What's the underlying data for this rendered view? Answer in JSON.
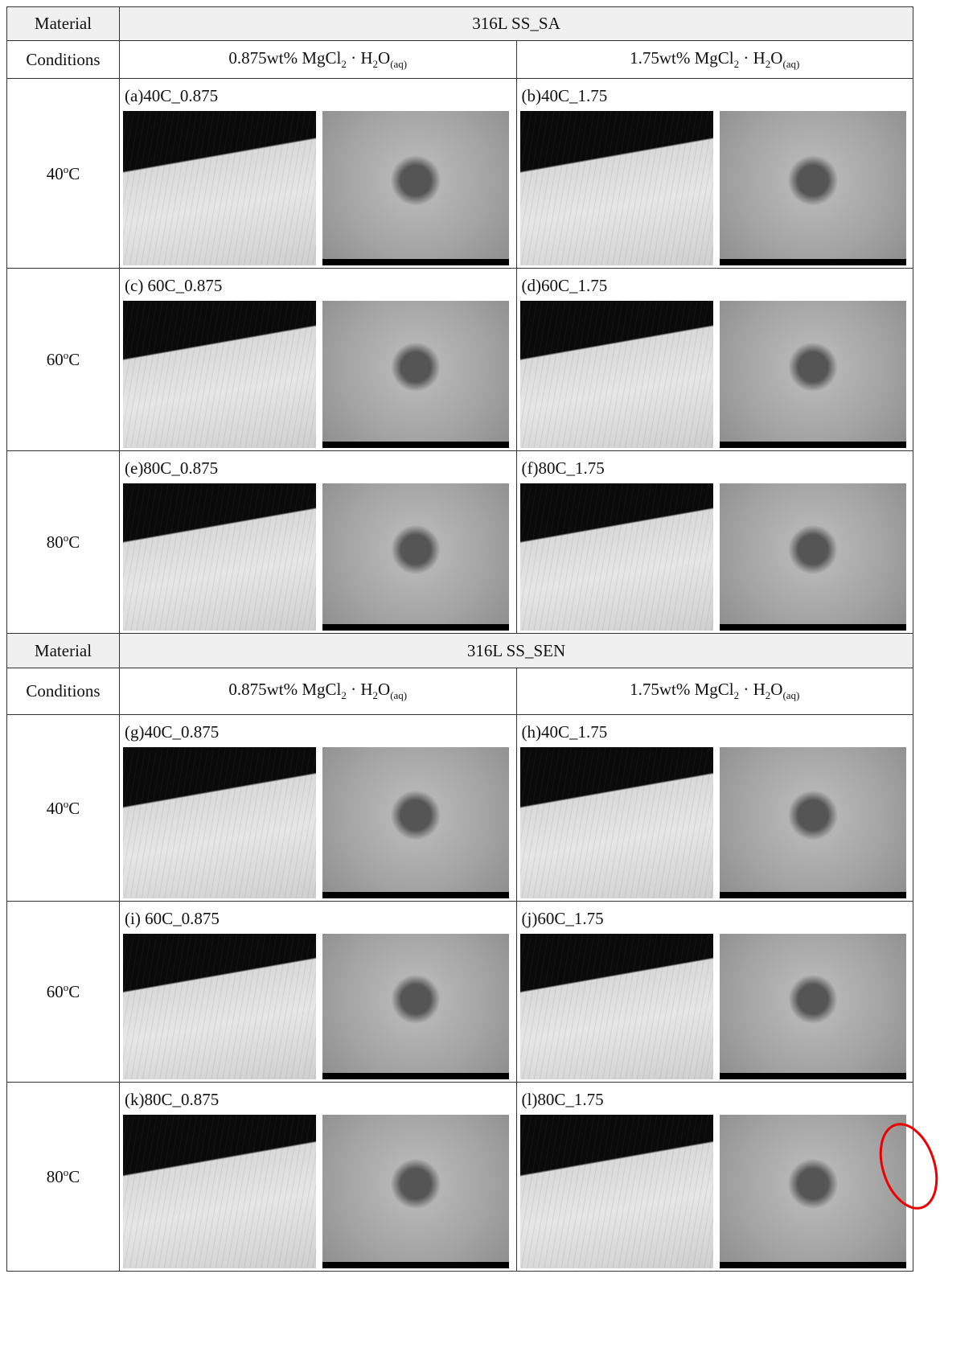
{
  "sections": [
    {
      "material_label": "Material",
      "material": "316L SS_SA",
      "conditions_label": "Conditions",
      "conditions": [
        [
          "0.875wt% MgCl",
          "2",
          " · H",
          "2",
          "O",
          "(aq)"
        ],
        [
          "1.75wt% MgCl",
          "2",
          " · H",
          "2",
          "O",
          "(aq)"
        ]
      ],
      "rows": [
        {
          "temperature": [
            "40",
            "o",
            "C"
          ],
          "cells": [
            "(a)40C_0.875",
            "(b)40C_1.75"
          ]
        },
        {
          "temperature": [
            "60",
            "o",
            "C"
          ],
          "cells": [
            "(c) 60C_0.875",
            "(d)60C_1.75"
          ]
        },
        {
          "temperature": [
            "80",
            "o",
            "C"
          ],
          "cells": [
            "(e)80C_0.875",
            "(f)80C_1.75"
          ]
        }
      ]
    },
    {
      "material_label": "Material",
      "material": "316L SS_SEN",
      "conditions_label": "Conditions",
      "conditions": [
        [
          "0.875wt% MgCl",
          "2",
          " · H",
          "2",
          "O",
          "(aq)"
        ],
        [
          "1.75wt% MgCl",
          "2",
          " · H",
          "2",
          "O",
          "(aq)"
        ]
      ],
      "rows": [
        {
          "temperature": [
            "40",
            "o",
            "C"
          ],
          "cells": [
            "(g)40C_0.875",
            "(h)40C_1.75"
          ]
        },
        {
          "temperature": [
            "60",
            "o",
            "C"
          ],
          "cells": [
            "(i) 60C_0.875",
            "(j)60C_1.75"
          ]
        },
        {
          "temperature": [
            "80",
            "o",
            "C"
          ],
          "cells": [
            "(k)80C_0.875",
            "(l)80C_1.75"
          ]
        }
      ]
    }
  ]
}
